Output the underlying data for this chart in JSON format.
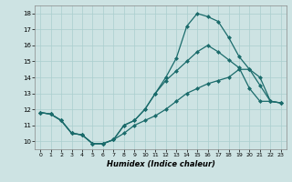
{
  "xlabel": "Humidex (Indice chaleur)",
  "xlim": [
    -0.5,
    23.5
  ],
  "ylim": [
    9.5,
    18.5
  ],
  "xticks": [
    0,
    1,
    2,
    3,
    4,
    5,
    6,
    7,
    8,
    9,
    10,
    11,
    12,
    13,
    14,
    15,
    16,
    17,
    18,
    19,
    20,
    21,
    22,
    23
  ],
  "yticks": [
    10,
    11,
    12,
    13,
    14,
    15,
    16,
    17,
    18
  ],
  "background_color": "#cde3e3",
  "grid_color": "#aacece",
  "line_color": "#1a6b6b",
  "line1_x": [
    0,
    1,
    2,
    3,
    4,
    5,
    6,
    7,
    8,
    9,
    10,
    11,
    12,
    13,
    14,
    15,
    16,
    17,
    18,
    19,
    20,
    21,
    22,
    23
  ],
  "line1_y": [
    11.8,
    11.7,
    11.3,
    10.5,
    10.4,
    9.85,
    9.85,
    10.1,
    10.5,
    11.0,
    11.3,
    11.6,
    12.0,
    12.5,
    13.0,
    13.3,
    13.6,
    13.8,
    14.0,
    14.5,
    14.5,
    14.0,
    12.5,
    12.4
  ],
  "line2_x": [
    0,
    1,
    2,
    3,
    4,
    5,
    6,
    7,
    8,
    9,
    10,
    11,
    12,
    13,
    14,
    15,
    16,
    17,
    18,
    19,
    20,
    21,
    22,
    23
  ],
  "line2_y": [
    11.8,
    11.7,
    11.3,
    10.5,
    10.4,
    9.85,
    9.85,
    10.1,
    11.0,
    11.3,
    12.0,
    13.0,
    13.8,
    14.4,
    15.0,
    15.6,
    16.0,
    15.6,
    15.1,
    14.6,
    13.3,
    12.5,
    12.5,
    12.4
  ],
  "line3_x": [
    0,
    1,
    2,
    3,
    4,
    5,
    6,
    7,
    8,
    9,
    10,
    11,
    12,
    13,
    14,
    15,
    16,
    17,
    18,
    19,
    20,
    21,
    22,
    23
  ],
  "line3_y": [
    11.8,
    11.7,
    11.3,
    10.5,
    10.4,
    9.85,
    9.85,
    10.1,
    11.0,
    11.3,
    12.0,
    13.0,
    14.0,
    15.2,
    17.2,
    18.0,
    17.8,
    17.5,
    16.5,
    15.3,
    14.5,
    13.5,
    12.5,
    12.4
  ]
}
